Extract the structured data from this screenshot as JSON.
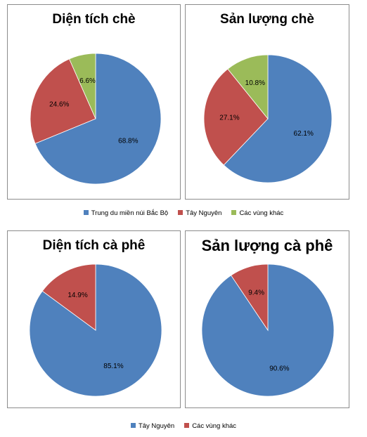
{
  "colors": {
    "blue": "#4f81bd",
    "red": "#c0504d",
    "green": "#9bbb59"
  },
  "legends": [
    [
      "Trung du miền núi Bắc Bộ",
      "Tây Nguyên",
      "Các vùng khác"
    ],
    [
      "Tây Nguyên",
      "Các vùng khác"
    ]
  ],
  "chart_data": [
    {
      "type": "pie",
      "title": "Diện tích chè",
      "slices": [
        {
          "name": "Trung du miền núi Bắc Bộ",
          "value": 68.8,
          "label": "68.8%",
          "color": "#4f81bd"
        },
        {
          "name": "Tây Nguyên",
          "value": 24.6,
          "label": "24.6%",
          "color": "#c0504d"
        },
        {
          "name": "Các vùng khác",
          "value": 6.6,
          "label": "6.6%",
          "color": "#9bbb59"
        }
      ],
      "legend": "bottom"
    },
    {
      "type": "pie",
      "title": "Sản lượng chè",
      "slices": [
        {
          "name": "Trung du miền núi Bắc Bộ",
          "value": 62.1,
          "label": "62.1%",
          "color": "#4f81bd"
        },
        {
          "name": "Tây Nguyên",
          "value": 27.1,
          "label": "27.1%",
          "color": "#c0504d"
        },
        {
          "name": "Các vùng khác",
          "value": 10.8,
          "label": "10.8%",
          "color": "#9bbb59"
        }
      ],
      "legend": "bottom"
    },
    {
      "type": "pie",
      "title": "Diện tích cà phê",
      "slices": [
        {
          "name": "Tây Nguyên",
          "value": 85.1,
          "label": "85.1%",
          "color": "#4f81bd"
        },
        {
          "name": "Các vùng khác",
          "value": 14.9,
          "label": "14.9%",
          "color": "#c0504d"
        }
      ],
      "legend": "bottom"
    },
    {
      "type": "pie",
      "title": "Sản lượng cà phê",
      "slices": [
        {
          "name": "Tây Nguyên",
          "value": 90.6,
          "label": "90.6%",
          "color": "#4f81bd"
        },
        {
          "name": "Các vùng khác",
          "value": 9.4,
          "label": "9.4%",
          "color": "#c0504d"
        }
      ],
      "legend": "bottom"
    }
  ]
}
